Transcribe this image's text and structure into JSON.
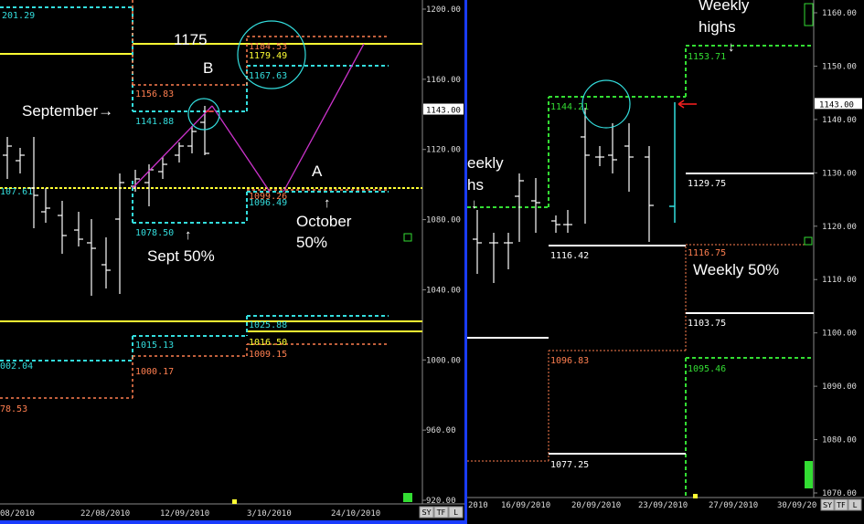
{
  "colors": {
    "background": "#000000",
    "price_bar": "#ffffff",
    "yellow": "#ffff33",
    "cyan": "#33dddd",
    "salmon": "#ff7f50",
    "green": "#33dd33",
    "magenta": "#cc33cc",
    "red": "#ff2020",
    "white": "#ffffff"
  },
  "chart_data": [
    {
      "type": "bar",
      "panel": "left",
      "description_type": "ohlc price chart",
      "ylim": [
        920,
        1210
      ],
      "y_ticks": [
        "1200.00",
        "1160.00",
        "1120.00",
        "1080.00",
        "1040.00",
        "1000.00",
        "960.00",
        "920.00"
      ],
      "x_ticks": [
        "08/2010",
        "22/08/2010",
        "12/09/2010",
        "3/10/2010",
        "24/10/2010"
      ],
      "current_price_label": "1143.00",
      "level_labels": [
        "201.29",
        "1156.83",
        "1141.88",
        "107.61",
        "1078.50",
        "1184.53",
        "1179.49",
        "1167.63",
        "1099.26",
        "1096.49",
        "1025.88",
        "1015.13",
        "1016.50",
        "1009.15",
        "002.04",
        "1000.17",
        "78.53"
      ],
      "annotations": [
        "1175",
        "B",
        "September",
        "A",
        "October",
        "50%",
        "Sept 50%"
      ],
      "buttons": [
        "SY",
        "TF",
        "L"
      ]
    },
    {
      "type": "bar",
      "panel": "right",
      "description_type": "ohlc price chart",
      "ylim": [
        1070,
        1162
      ],
      "y_ticks": [
        "1160.00",
        "1150.00",
        "1140.00",
        "1130.00",
        "1120.00",
        "1110.00",
        "1100.00",
        "1090.00",
        "1080.00",
        "1070.00"
      ],
      "x_ticks": [
        "2010",
        "16/09/2010",
        "20/09/2010",
        "23/09/2010",
        "27/09/2010",
        "30/09/20"
      ],
      "current_price_label": "1143.00",
      "level_labels": [
        "1153.71",
        "1144.21",
        "1129.75",
        "1116.42",
        "1116.75",
        "1103.75",
        "1096.83",
        "1095.46",
        "1077.25"
      ],
      "annotations": [
        "Weekly",
        "highs",
        "eekly",
        "hs",
        "Weekly 50%"
      ],
      "buttons": [
        "SY",
        "TF",
        "L"
      ]
    }
  ]
}
